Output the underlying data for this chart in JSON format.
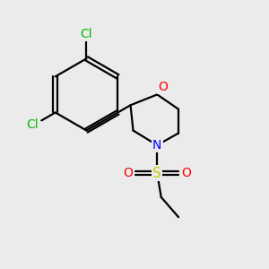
{
  "bg_color": "#ebebeb",
  "bond_color": "#000000",
  "bond_width": 1.6,
  "atom_colors": {
    "Cl": "#00bb00",
    "O": "#ff0000",
    "N": "#0000ff",
    "S": "#cccc00",
    "C": "#000000"
  }
}
